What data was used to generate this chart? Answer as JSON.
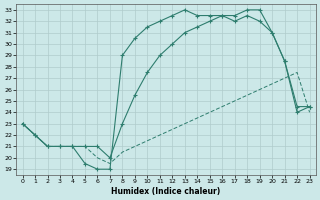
{
  "xlabel": "Humidex (Indice chaleur)",
  "bg_color": "#cce8e8",
  "grid_color": "#b0cccc",
  "line_color": "#2e7d6e",
  "xlim": [
    -0.5,
    23.5
  ],
  "ylim": [
    18.5,
    33.5
  ],
  "yticks": [
    19,
    20,
    21,
    22,
    23,
    24,
    25,
    26,
    27,
    28,
    29,
    30,
    31,
    32,
    33
  ],
  "xticks": [
    0,
    1,
    2,
    3,
    4,
    5,
    6,
    7,
    8,
    9,
    10,
    11,
    12,
    13,
    14,
    15,
    16,
    17,
    18,
    19,
    20,
    21,
    22,
    23
  ],
  "line1_x": [
    0,
    1,
    2,
    3,
    4,
    5,
    6,
    7,
    8,
    9,
    10,
    11,
    12,
    13,
    14,
    15,
    16,
    17,
    18,
    19,
    20,
    21,
    22,
    23
  ],
  "line1_y": [
    23.0,
    22.0,
    21.0,
    21.0,
    21.0,
    19.5,
    19.0,
    19.0,
    29.0,
    30.5,
    31.5,
    32.0,
    32.5,
    33.0,
    32.5,
    32.5,
    32.5,
    32.0,
    32.5,
    32.0,
    31.0,
    28.5,
    24.0,
    24.5
  ],
  "line2_x": [
    0,
    1,
    2,
    3,
    4,
    5,
    6,
    7,
    8,
    9,
    10,
    11,
    12,
    13,
    14,
    15,
    16,
    17,
    18,
    19,
    20,
    21,
    22,
    23
  ],
  "line2_y": [
    23.0,
    22.0,
    21.0,
    21.0,
    21.0,
    21.0,
    21.0,
    20.0,
    23.0,
    25.5,
    27.5,
    29.0,
    30.0,
    31.0,
    31.5,
    32.0,
    32.5,
    32.5,
    33.0,
    33.0,
    31.0,
    28.5,
    24.5,
    24.5
  ],
  "line3_x": [
    0,
    1,
    2,
    3,
    4,
    5,
    6,
    7,
    8,
    9,
    10,
    11,
    12,
    13,
    14,
    15,
    16,
    17,
    18,
    19,
    20,
    21,
    22,
    23
  ],
  "line3_y": [
    23.0,
    22.0,
    21.0,
    21.0,
    21.0,
    21.0,
    20.0,
    19.5,
    20.5,
    21.0,
    21.5,
    22.0,
    22.5,
    23.0,
    23.5,
    24.0,
    24.5,
    25.0,
    25.5,
    26.0,
    26.5,
    27.0,
    27.5,
    24.0
  ]
}
